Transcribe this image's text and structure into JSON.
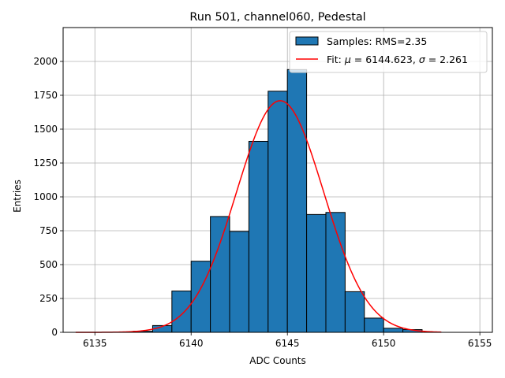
{
  "chart_data": {
    "type": "bar",
    "title": "Run 501, channel060, Pedestal",
    "xlabel": "ADC Counts",
    "ylabel": "Entries",
    "xlim": [
      6133.35,
      6155.65
    ],
    "ylim": [
      0,
      2250
    ],
    "xticks": [
      6135,
      6140,
      6145,
      6150,
      6155
    ],
    "yticks": [
      0,
      250,
      500,
      750,
      1000,
      1250,
      1500,
      1750,
      2000
    ],
    "grid": true,
    "legend_position": "top-right",
    "colors": {
      "bars": "#1f77b4",
      "bar_edge": "#000000",
      "fit": "#ff0000"
    },
    "histogram": {
      "name": "Samples: RMS=2.35",
      "bin_width": 1,
      "bin_left_edges": [
        6134,
        6135,
        6136,
        6137,
        6138,
        6139,
        6140,
        6141,
        6142,
        6143,
        6144,
        6145,
        6146,
        6147,
        6148,
        6149,
        6150,
        6151,
        6152
      ],
      "values": [
        0,
        0,
        0,
        8,
        50,
        305,
        525,
        855,
        745,
        1410,
        1780,
        1940,
        870,
        885,
        300,
        105,
        30,
        20,
        0
      ]
    },
    "fit": {
      "name": "Fit: μ = 6144.623, σ = 2.261",
      "name_parts": {
        "prefix": "Fit: ",
        "mu_sym": "μ",
        "mu_val": " = 6144.623, ",
        "sigma_sym": "σ",
        "sigma_val": " = 2.261"
      },
      "mu": 6144.623,
      "sigma": 2.261,
      "amplitude": 1710,
      "x_range": [
        6134,
        6153
      ]
    }
  }
}
